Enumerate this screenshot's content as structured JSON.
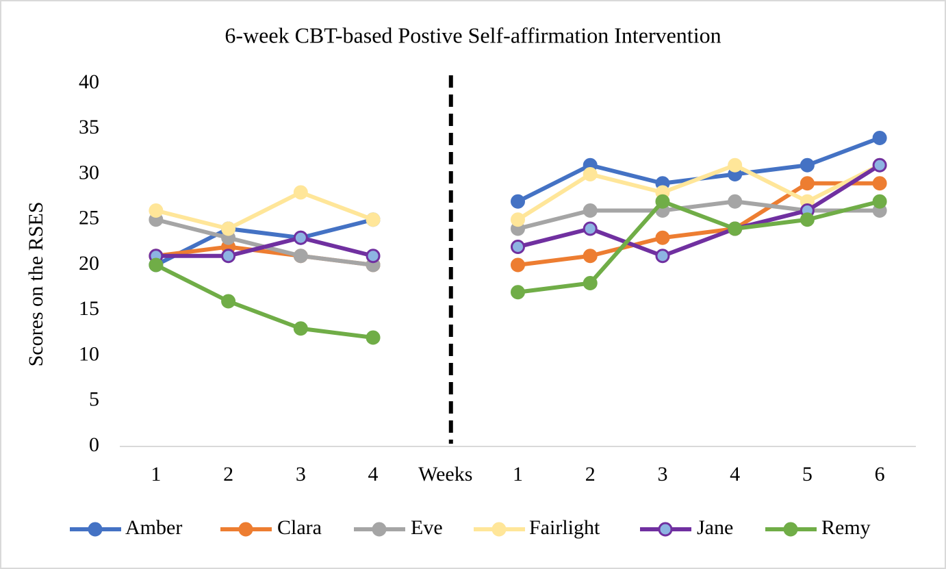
{
  "chart_data": {
    "type": "line",
    "title": "6-week CBT-based Postive Self-affirmation Intervention",
    "y_label": "Scores on the RSES",
    "categories": [
      "1",
      "2",
      "3",
      "4",
      "Weeks",
      "1",
      "2",
      "3",
      "4",
      "5",
      "6"
    ],
    "ylim": [
      0,
      40
    ],
    "yticks": [
      0,
      5,
      10,
      15,
      20,
      25,
      30,
      35,
      40
    ],
    "grid": false,
    "legend": "bottom",
    "series": [
      {
        "name": "Amber",
        "color": "#4472c4",
        "values": [
          20,
          24,
          23,
          25,
          null,
          27,
          31,
          29,
          30,
          31,
          34
        ]
      },
      {
        "name": "Clara",
        "color": "#ed7d31",
        "values": [
          21,
          22,
          21,
          20,
          null,
          20,
          21,
          23,
          24,
          29,
          29
        ]
      },
      {
        "name": "Eve",
        "color": "#a5a5a5",
        "values": [
          25,
          23,
          21,
          20,
          null,
          24,
          26,
          26,
          27,
          26,
          26
        ]
      },
      {
        "name": "Fairlight",
        "color": "#ffe699",
        "values": [
          26,
          24,
          28,
          25,
          null,
          25,
          30,
          28,
          31,
          27,
          31
        ]
      },
      {
        "name": "Jane",
        "color": "#7030a0",
        "marker_fill": "#8db4e2",
        "values": [
          21,
          21,
          23,
          21,
          null,
          22,
          24,
          21,
          24,
          26,
          31
        ]
      },
      {
        "name": "Remy",
        "color": "#70ad47",
        "values": [
          20,
          16,
          13,
          12,
          null,
          17,
          18,
          27,
          24,
          25,
          27
        ]
      }
    ]
  }
}
